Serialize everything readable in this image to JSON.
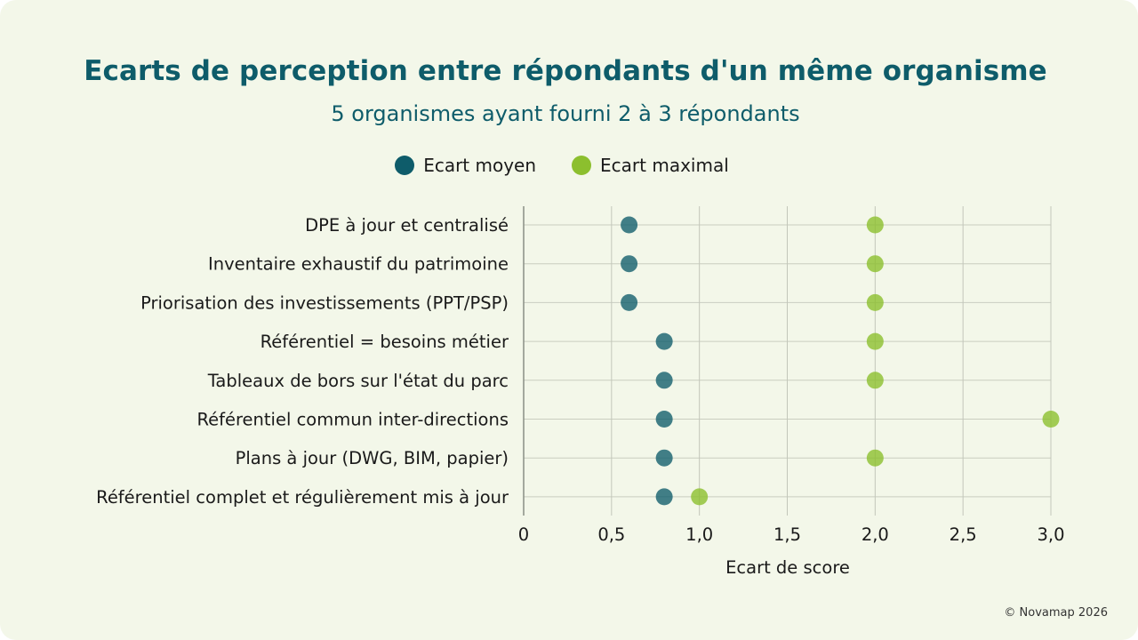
{
  "chart_data": {
    "type": "scatter",
    "title": "Ecarts de perception entre répondants d'un même organisme",
    "subtitle": "5 organismes ayant fourni 2 à 3 répondants",
    "xlabel": "Ecart de score",
    "ylabel": "",
    "xlim": [
      0,
      3
    ],
    "xticks": [
      0,
      0.5,
      1,
      1.5,
      2,
      2.5,
      3
    ],
    "xtick_labels": [
      "0",
      "0,5",
      "1,0",
      "1,5",
      "2,0",
      "2,5",
      "3,0"
    ],
    "grid": true,
    "legend_position": "top-center",
    "categories": [
      "DPE à jour et centralisé",
      "Inventaire exhaustif du patrimoine",
      "Priorisation des investissements (PPT/PSP)",
      "Référentiel = besoins métier",
      "Tableaux de bors sur l'état du parc",
      "Référentiel commun inter-directions",
      "Plans à jour (DWG, BIM, papier)",
      "Référentiel complet et régulièrement mis à jour"
    ],
    "series": [
      {
        "name": "Ecart moyen",
        "color": "#0e5c6a",
        "values": [
          0.6,
          0.6,
          0.6,
          0.8,
          0.8,
          0.8,
          0.8,
          0.8
        ]
      },
      {
        "name": "Ecart maximal",
        "color": "#8cbf2e",
        "values": [
          2,
          2,
          2,
          2,
          2,
          3,
          2,
          1
        ]
      }
    ]
  },
  "footer": "© Novamap 2026"
}
